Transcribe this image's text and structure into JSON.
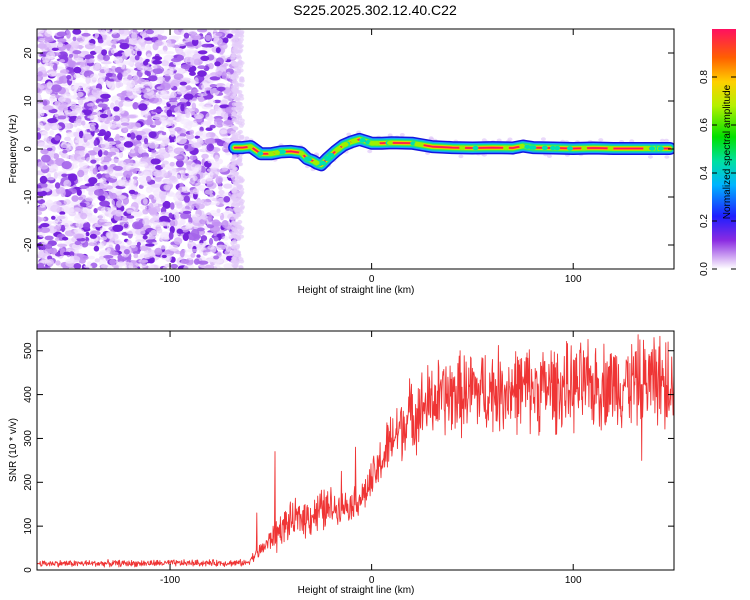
{
  "title": "S225.2025.302.12.40.C22",
  "colors": {
    "trace": "#ef3535",
    "axis": "#000000",
    "background": "#ffffff"
  },
  "chart_data": [
    {
      "type": "heatmap",
      "xlabel": "Height of straight line (km)",
      "ylabel": "Frequency (Hz)",
      "xlim": [
        -166,
        150
      ],
      "ylim": [
        -25,
        25
      ],
      "xticks": [
        -100,
        0,
        100
      ],
      "xtick_labels": [
        "-100",
        "0",
        "100"
      ],
      "yticks": [
        -20,
        -10,
        0,
        10,
        20
      ],
      "ytick_labels": [
        "-20",
        "-10",
        "0",
        "10",
        "20"
      ],
      "noise_region_x": [
        -166,
        -67
      ],
      "ridge": {
        "x": [
          -68,
          -64,
          -60,
          -55,
          -50,
          -45,
          -40,
          -35,
          -32,
          -29,
          -27,
          -25,
          -22,
          -18,
          -14,
          -10,
          -6,
          -3,
          0,
          5,
          10,
          20,
          30,
          40,
          50,
          60,
          70,
          75,
          80,
          90,
          100,
          110,
          120,
          130,
          140,
          148
        ],
        "freq": [
          0.3,
          0.3,
          0.5,
          -1.0,
          -1.0,
          -0.6,
          -0.5,
          -0.8,
          -2.0,
          -2.5,
          -3.0,
          -3.3,
          -2.0,
          -0.5,
          0.8,
          1.5,
          2.0,
          1.6,
          1.2,
          1.2,
          1.3,
          1.2,
          0.5,
          0.3,
          0.2,
          0.3,
          0.2,
          0.6,
          0.3,
          0.2,
          0.1,
          0.2,
          0.1,
          0.1,
          0.1,
          0.1
        ]
      },
      "colorbar": {
        "label": "Normalized spectral amplitude",
        "range": [
          0.0,
          1.0
        ],
        "ticks": [
          0.0,
          0.2,
          0.4,
          0.6,
          0.8
        ],
        "tick_labels": [
          "0.0",
          "0.2",
          "0.4",
          "0.6",
          "0.8"
        ]
      }
    },
    {
      "type": "line",
      "xlabel": "Height of straight line (km)",
      "ylabel": "SNR (10 * v/v)",
      "xlim": [
        -166,
        150
      ],
      "ylim": [
        0,
        545
      ],
      "xticks": [
        -100,
        0,
        100
      ],
      "xtick_labels": [
        "-100",
        "0",
        "100"
      ],
      "yticks": [
        0,
        100,
        200,
        300,
        400,
        500
      ],
      "ytick_labels": [
        "0",
        "100",
        "200",
        "300",
        "400",
        "500"
      ],
      "series": [
        {
          "name": "SNR",
          "trend_x": [
            -166,
            -120,
            -80,
            -62,
            -60,
            -55,
            -50,
            -45,
            -40,
            -35,
            -30,
            -25,
            -20,
            -15,
            -10,
            -5,
            0,
            5,
            10,
            15,
            20,
            25,
            30,
            40,
            50,
            60,
            70,
            80,
            90,
            100,
            110,
            120,
            130,
            140,
            150
          ],
          "trend_y": [
            15,
            15,
            16,
            16,
            25,
            45,
            70,
            95,
            110,
            120,
            125,
            135,
            140,
            145,
            150,
            165,
            200,
            250,
            295,
            330,
            355,
            370,
            385,
            400,
            405,
            410,
            412,
            412,
            415,
            415,
            420,
            425,
            428,
            432,
            435
          ],
          "spikes": [
            [
              -48,
              270
            ],
            [
              -57,
              130
            ],
            [
              -15,
              225
            ],
            [
              -8,
              280
            ],
            [
              8,
              330
            ],
            [
              50,
              460
            ],
            [
              60,
              480
            ],
            [
              77,
              495
            ],
            [
              89,
              500
            ],
            [
              105,
              500
            ],
            [
              133,
              525
            ],
            [
              140,
              530
            ],
            [
              147,
              520
            ],
            [
              134,
              250
            ],
            [
              -47,
              40
            ]
          ]
        }
      ]
    }
  ]
}
